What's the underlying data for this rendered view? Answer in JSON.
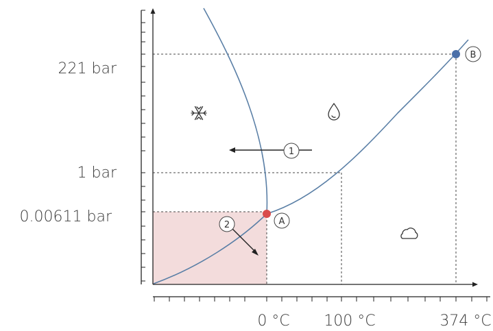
{
  "y_axis": {
    "labels": {
      "p_critical": "221 bar",
      "p_one": "1 bar",
      "p_triple": "0.00611 bar"
    }
  },
  "x_axis": {
    "labels": {
      "t_zero": "0 °C",
      "t_boil": "100 °C",
      "t_critical": "374 °C"
    }
  },
  "points": {
    "triple": {
      "marker": "A",
      "color": "#d94b4b"
    },
    "critical": {
      "marker": "B",
      "color": "#4a6fa8"
    }
  },
  "processes": {
    "one": {
      "marker": "1"
    },
    "two": {
      "marker": "2"
    }
  },
  "regions": {
    "solid": {
      "icon": "snowflake-icon"
    },
    "liquid": {
      "icon": "droplet-icon"
    },
    "gas": {
      "icon": "cloud-icon"
    }
  },
  "colors": {
    "curve": "#5a7fa6",
    "shade": "#f3dcdc"
  }
}
